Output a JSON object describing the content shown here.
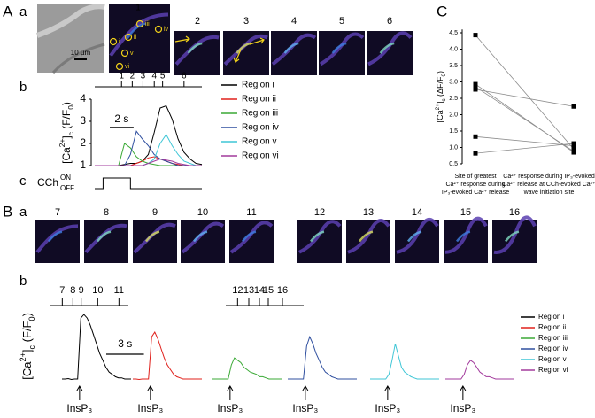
{
  "panel_labels": {
    "A": "A",
    "Aa": "a",
    "Ab": "b",
    "Ac": "c",
    "B": "B",
    "Ba": "a",
    "Bb": "b",
    "C": "C"
  },
  "images_a": {
    "scale_bar": "10 µm",
    "frame_labels": [
      "1",
      "2",
      "3",
      "4",
      "5",
      "6"
    ],
    "region_labels": [
      "i",
      "ii",
      "iii",
      "iv",
      "v",
      "vi"
    ]
  },
  "images_b": {
    "frame_labels": [
      "7",
      "8",
      "9",
      "10",
      "11",
      "12",
      "13",
      "14",
      "15",
      "16"
    ]
  },
  "chart_data": [
    {
      "type": "line",
      "ylabel": [
        {
          "text": "[Ca"
        },
        {
          "text": "2+",
          "pos": "sup"
        },
        {
          "text": "]"
        },
        {
          "text": "c",
          "pos": "sub"
        },
        {
          "text": " (F/F"
        },
        {
          "text": "0",
          "pos": "sub"
        },
        {
          "text": ")"
        }
      ],
      "x": [
        0,
        0.5,
        1,
        1.5,
        2,
        2.5,
        3,
        3.5,
        4,
        4.5,
        5,
        5.5,
        6,
        6.5,
        7,
        7.5,
        8,
        8.5,
        9
      ],
      "xlim": [
        0,
        9
      ],
      "ylim": [
        0.68,
        4.28
      ],
      "yticks": [
        1,
        2,
        3,
        4
      ],
      "series": [
        {
          "name": "Region i",
          "color": "#000000",
          "values": [
            1,
            1,
            1,
            1,
            1,
            1.05,
            1.1,
            1.1,
            1.2,
            1.5,
            2.5,
            3.6,
            3.7,
            3.1,
            2.2,
            1.6,
            1.3,
            1.1,
            1.05
          ]
        },
        {
          "name": "Region ii",
          "color": "#e0201b",
          "values": [
            1,
            1,
            1,
            1,
            1,
            1,
            1,
            1.1,
            1.2,
            1.35,
            1.4,
            1.3,
            1.2,
            1.1,
            1.05,
            1,
            1,
            1,
            1
          ]
        },
        {
          "name": "Region iii",
          "color": "#3aa935",
          "values": [
            1,
            1,
            1,
            1,
            1,
            2.0,
            1.8,
            1.4,
            1.2,
            1.1,
            1.05,
            1,
            1,
            1,
            1,
            1,
            1,
            1,
            1
          ]
        },
        {
          "name": "Region iv",
          "color": "#2f4f9f",
          "values": [
            1,
            1,
            1,
            1,
            1,
            1,
            1.5,
            2.55,
            2.2,
            1.9,
            1.5,
            1.3,
            1.2,
            1.1,
            1,
            1,
            1,
            1,
            1
          ]
        },
        {
          "name": "Region v",
          "color": "#3fc6d6",
          "values": [
            1,
            1,
            1,
            1,
            1,
            1,
            1,
            1,
            1,
            1.1,
            1.3,
            2.0,
            2.4,
            1.9,
            1.5,
            1.2,
            1.1,
            1,
            1
          ]
        },
        {
          "name": "Region vi",
          "color": "#a23a9c",
          "values": [
            1,
            1,
            1,
            1,
            1,
            1,
            1,
            1,
            1,
            1.1,
            1.2,
            1.3,
            1.25,
            1.2,
            1.1,
            1.05,
            1,
            1,
            1
          ]
        }
      ],
      "events": [
        {
          "value": 2.25,
          "label": "1"
        },
        {
          "value": 3.15,
          "label": "2"
        },
        {
          "value": 4.05,
          "label": "3"
        },
        {
          "value": 5.0,
          "label": "4"
        },
        {
          "value": 5.7,
          "label": "5"
        },
        {
          "value": 7.5,
          "label": "6"
        }
      ],
      "scalebar": {
        "value": 2,
        "label": "2 s"
      },
      "stimulus": {
        "name": "CCh",
        "on_label": "ON",
        "off_label": "OFF",
        "on_interval": [
          0.7,
          3.0
        ]
      }
    },
    {
      "type": "small_multiples",
      "ylabel": [
        {
          "text": "[Ca"
        },
        {
          "text": "2+",
          "pos": "sup"
        },
        {
          "text": "]"
        },
        {
          "text": "c",
          "pos": "sub"
        },
        {
          "text": " (F/F"
        },
        {
          "text": "0",
          "pos": "sub"
        },
        {
          "text": ")"
        }
      ],
      "x": [
        0,
        0.25,
        0.5,
        0.75,
        1,
        1.25,
        1.5,
        1.75,
        2,
        2.25,
        2.5,
        2.75,
        3,
        3.25,
        3.5,
        3.75,
        4,
        4.25,
        4.5,
        4.75,
        5,
        5.25,
        5.5
      ],
      "xlim": [
        0,
        5.5
      ],
      "ylim": [
        0.8,
        4.0
      ],
      "series": [
        {
          "name": "Region i",
          "color": "#000000",
          "values": [
            1,
            1,
            1.02,
            0.98,
            1,
            1,
            3.6,
            3.75,
            3.6,
            3.3,
            2.9,
            2.5,
            2.1,
            1.8,
            1.5,
            1.3,
            1.2,
            1.1,
            1.05,
            1.05,
            1,
            1,
            1
          ]
        },
        {
          "name": "Region ii",
          "color": "#e0201b",
          "values": [
            1,
            1,
            0.98,
            1,
            1,
            1,
            2.8,
            3.0,
            2.7,
            2.3,
            1.9,
            1.6,
            1.4,
            1.2,
            1.1,
            1.05,
            1,
            1,
            1,
            1,
            1,
            1,
            1
          ]
        },
        {
          "name": "Region iii",
          "color": "#3aa935",
          "values": [
            1,
            1,
            1,
            1,
            1,
            1,
            1.6,
            1.9,
            1.8,
            1.7,
            1.5,
            1.4,
            1.3,
            1.25,
            1.2,
            1.1,
            1.1,
            1.05,
            1,
            1,
            1,
            1,
            1
          ]
        },
        {
          "name": "Region iv",
          "color": "#2f4f9f",
          "values": [
            1,
            1,
            1,
            1,
            1,
            1,
            2.4,
            2.8,
            2.5,
            2.1,
            1.8,
            1.5,
            1.3,
            1.2,
            1.1,
            1.05,
            1,
            1,
            1,
            1,
            1,
            1,
            1
          ]
        },
        {
          "name": "Region v",
          "color": "#3fc6d6",
          "values": [
            1,
            1,
            1,
            1,
            1,
            1,
            1.2,
            1.8,
            2.5,
            2.0,
            1.5,
            1.3,
            1.2,
            1.1,
            1.05,
            1,
            1,
            1,
            1,
            1,
            1,
            1,
            1
          ]
        },
        {
          "name": "Region vi",
          "color": "#a23a9c",
          "values": [
            1,
            1,
            1,
            1,
            1,
            1,
            1.2,
            1.6,
            1.8,
            1.7,
            1.5,
            1.3,
            1.2,
            1.1,
            1.1,
            1.05,
            1,
            1,
            1,
            1,
            1,
            1,
            1
          ]
        }
      ],
      "stimulus": {
        "value": 1.4,
        "label": "InsP₃"
      },
      "scalebar": {
        "value": 3,
        "label": "3 s"
      },
      "event_groups": [
        {
          "xlim": [
            0,
            6.6
          ],
          "events": [
            {
              "value": 1.0,
              "label": "7"
            },
            {
              "value": 1.9,
              "label": "8"
            },
            {
              "value": 2.6,
              "label": "9"
            },
            {
              "value": 4.0,
              "label": "10"
            },
            {
              "value": 5.8,
              "label": "11"
            }
          ]
        },
        {
          "xlim": [
            0,
            6.6
          ],
          "events": [
            {
              "value": 1.0,
              "label": "12"
            },
            {
              "value": 1.95,
              "label": "13"
            },
            {
              "value": 2.85,
              "label": "14"
            },
            {
              "value": 3.6,
              "label": "15"
            },
            {
              "value": 4.8,
              "label": "16"
            }
          ]
        }
      ]
    },
    {
      "type": "paired",
      "ylabel": [
        {
          "text": "[Ca"
        },
        {
          "text": "2+",
          "pos": "sup"
        },
        {
          "text": "]"
        },
        {
          "text": "c",
          "pos": "sub"
        },
        {
          "text": " (ΔF/F"
        },
        {
          "text": "0",
          "pos": "sub"
        },
        {
          "text": ")"
        }
      ],
      "categories": [
        [
          "Site of greatest",
          "Ca²⁺ response during",
          "IP₃-evoked Ca²⁺ release"
        ],
        [
          "Ca²⁺ response during IP₃-evoked",
          "Ca²⁺ release at CCh-evoked Ca²⁺",
          "wave initiation site"
        ]
      ],
      "ylim": [
        0.5,
        4.6
      ],
      "yticks": [
        0.5,
        {
          "value": 1,
          "label": "1.0"
        },
        1.5,
        {
          "value": 2,
          "label": "2.0"
        },
        2.5,
        {
          "value": 3,
          "label": "3.0"
        },
        3.5,
        {
          "value": 4,
          "label": "4.0"
        },
        4.5
      ],
      "color": "#000000",
      "line_color": "#8c8c8c",
      "series": [
        {
          "values": [
            4.43,
            0.95
          ]
        },
        {
          "values": [
            2.93,
            0.85
          ]
        },
        {
          "values": [
            2.85,
            0.88
          ]
        },
        {
          "values": [
            2.77,
            2.25
          ]
        },
        {
          "values": [
            1.33,
            1.05
          ]
        },
        {
          "values": [
            0.82,
            1.12
          ]
        }
      ]
    }
  ]
}
